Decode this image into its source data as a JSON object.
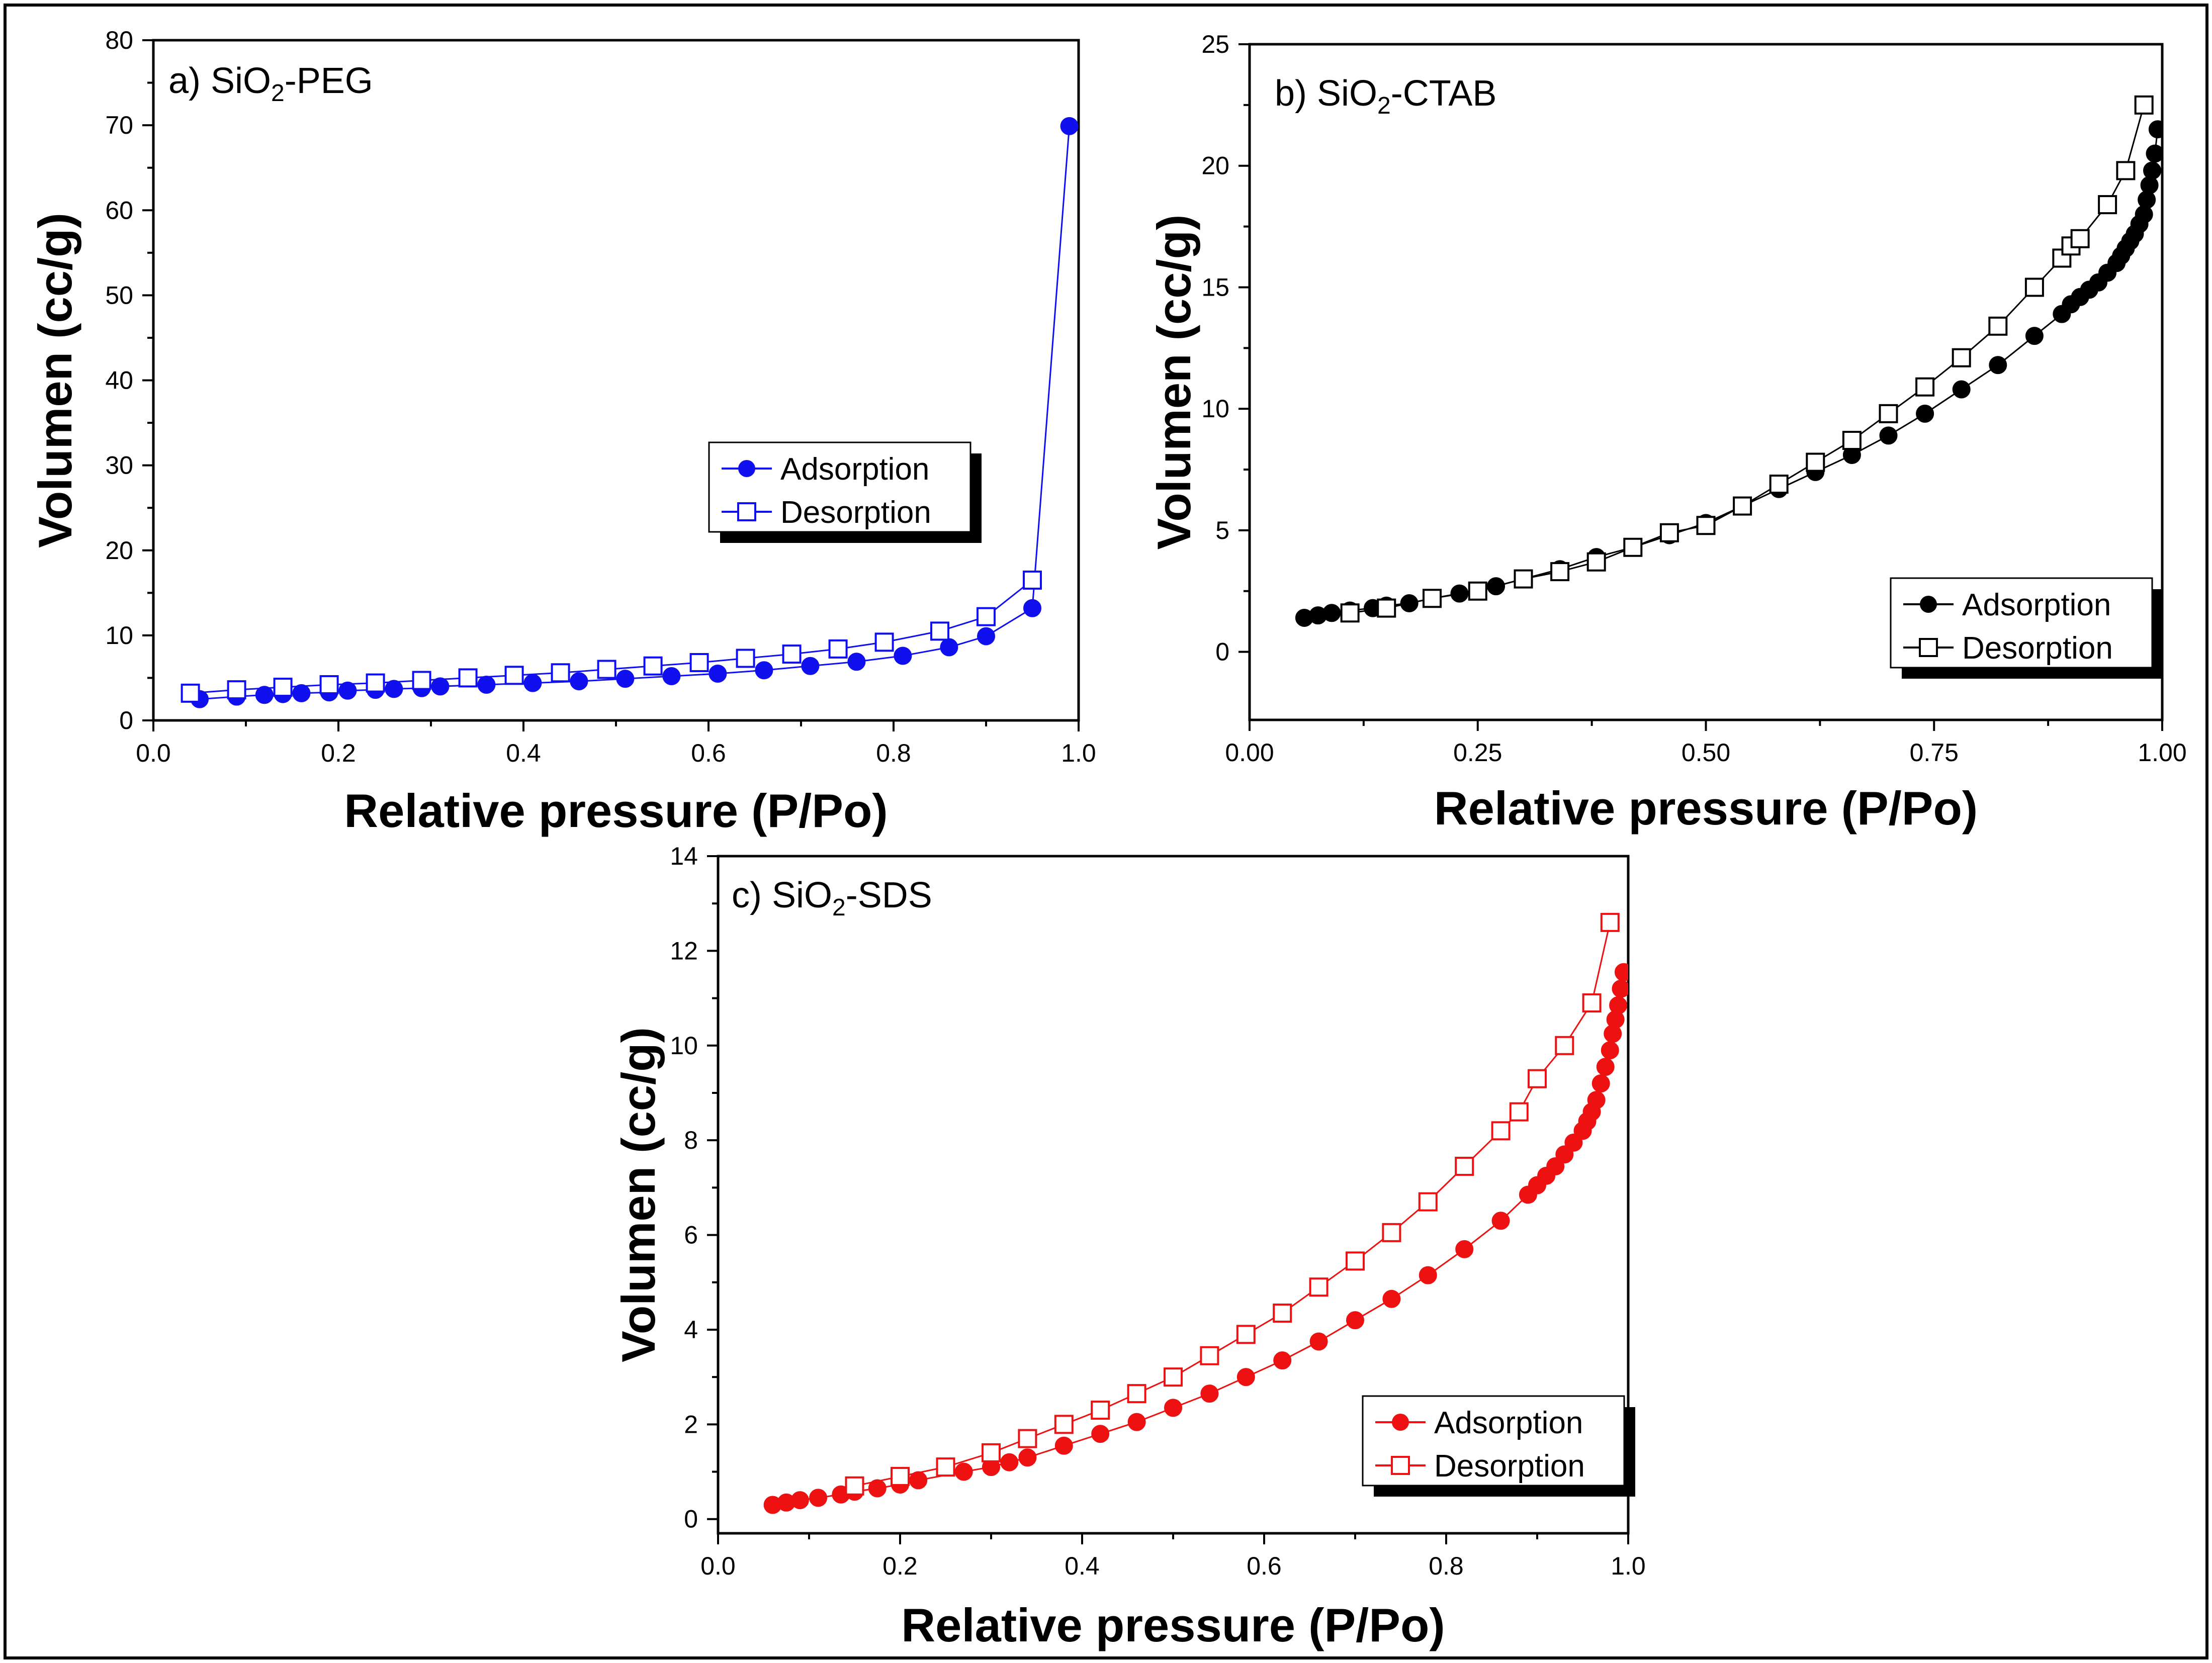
{
  "figure": {
    "frame_color": "#000000"
  },
  "legend_labels": {
    "adsorption": "Adsorption",
    "desorption": "Desorption"
  },
  "chart_data": [
    {
      "id": "a",
      "type": "scatter",
      "title": {
        "prefix": "a) SiO",
        "sub": "2",
        "suffix": "-PEG"
      },
      "xlabel": "Relative pressure (P/Po)",
      "ylabel": "Volumen (cc/g)",
      "xlim": [
        0.0,
        1.0
      ],
      "ylim": [
        0,
        80
      ],
      "xticks": [
        0.0,
        0.2,
        0.4,
        0.6,
        0.8,
        1.0
      ],
      "xtick_labels": [
        "0.0",
        "0.2",
        "0.4",
        "0.6",
        "0.8",
        "1.0"
      ],
      "yticks": [
        0,
        10,
        20,
        30,
        40,
        50,
        60,
        70,
        80
      ],
      "ytick_labels": [
        "0",
        "10",
        "20",
        "30",
        "40",
        "50",
        "60",
        "70",
        "80"
      ],
      "color": "#1010ee",
      "legend_position": "center-right",
      "series": [
        {
          "name": "Adsorption",
          "marker": "filled-circle",
          "x": [
            0.05,
            0.09,
            0.12,
            0.14,
            0.16,
            0.19,
            0.21,
            0.24,
            0.26,
            0.29,
            0.31,
            0.36,
            0.41,
            0.46,
            0.51,
            0.56,
            0.61,
            0.66,
            0.71,
            0.76,
            0.81,
            0.86,
            0.9,
            0.95,
            0.99
          ],
          "y": [
            2.5,
            2.8,
            3.0,
            3.1,
            3.2,
            3.3,
            3.5,
            3.6,
            3.7,
            3.8,
            4.0,
            4.2,
            4.4,
            4.6,
            4.9,
            5.2,
            5.5,
            5.9,
            6.4,
            6.9,
            7.6,
            8.6,
            9.9,
            13.2,
            69.9
          ]
        },
        {
          "name": "Desorption",
          "marker": "open-square",
          "x": [
            0.04,
            0.09,
            0.14,
            0.19,
            0.24,
            0.29,
            0.34,
            0.39,
            0.44,
            0.49,
            0.54,
            0.59,
            0.64,
            0.69,
            0.74,
            0.79,
            0.85,
            0.9,
            0.95
          ],
          "y": [
            3.2,
            3.6,
            3.9,
            4.2,
            4.4,
            4.7,
            5.0,
            5.3,
            5.6,
            6.0,
            6.4,
            6.8,
            7.3,
            7.8,
            8.4,
            9.2,
            10.5,
            12.2,
            16.5
          ]
        }
      ]
    },
    {
      "id": "b",
      "type": "scatter",
      "title": {
        "prefix": "b) SiO",
        "sub": "2",
        "suffix": "-CTAB"
      },
      "xlabel": "Relative pressure (P/Po)",
      "ylabel": "Volumen (cc/g)",
      "xlim": [
        0.0,
        1.0
      ],
      "ylim": [
        -2.8,
        25
      ],
      "xticks": [
        0.0,
        0.25,
        0.5,
        0.75,
        1.0
      ],
      "xtick_labels": [
        "0.00",
        "0.25",
        "0.50",
        "0.75",
        "1.00"
      ],
      "yticks": [
        0,
        5,
        10,
        15,
        20,
        25
      ],
      "ytick_labels": [
        "0",
        "5",
        "10",
        "15",
        "20",
        "25"
      ],
      "color": "#000000",
      "legend_position": "bottom-right",
      "series": [
        {
          "name": "Adsorption",
          "marker": "filled-circle",
          "x": [
            0.06,
            0.075,
            0.09,
            0.11,
            0.135,
            0.15,
            0.175,
            0.2,
            0.23,
            0.27,
            0.3,
            0.34,
            0.38,
            0.42,
            0.46,
            0.5,
            0.54,
            0.58,
            0.62,
            0.66,
            0.7,
            0.74,
            0.78,
            0.82,
            0.86,
            0.89,
            0.9,
            0.91,
            0.92,
            0.93,
            0.94,
            0.95,
            0.955,
            0.96,
            0.965,
            0.97,
            0.975,
            0.98,
            0.983,
            0.986,
            0.989,
            0.992,
            0.995
          ],
          "y": [
            1.4,
            1.5,
            1.6,
            1.7,
            1.8,
            1.9,
            2.0,
            2.2,
            2.4,
            2.7,
            3.0,
            3.4,
            3.9,
            4.3,
            4.8,
            5.3,
            6.0,
            6.7,
            7.4,
            8.1,
            8.9,
            9.8,
            10.8,
            11.8,
            13.0,
            13.9,
            14.3,
            14.6,
            14.9,
            15.2,
            15.6,
            16.0,
            16.3,
            16.6,
            16.9,
            17.2,
            17.6,
            18.0,
            18.6,
            19.2,
            19.8,
            20.5,
            21.5
          ]
        },
        {
          "name": "Desorption",
          "marker": "open-square",
          "x": [
            0.11,
            0.15,
            0.2,
            0.25,
            0.3,
            0.34,
            0.38,
            0.42,
            0.46,
            0.5,
            0.54,
            0.58,
            0.62,
            0.66,
            0.7,
            0.74,
            0.78,
            0.82,
            0.86,
            0.89,
            0.9,
            0.91,
            0.94,
            0.96,
            0.98
          ],
          "y": [
            1.6,
            1.8,
            2.2,
            2.5,
            3.0,
            3.3,
            3.7,
            4.3,
            4.9,
            5.2,
            6.0,
            6.9,
            7.8,
            8.7,
            9.8,
            10.9,
            12.1,
            13.4,
            15.0,
            16.2,
            16.7,
            17.0,
            18.4,
            19.8,
            22.5
          ]
        }
      ]
    },
    {
      "id": "c",
      "type": "scatter",
      "title": {
        "prefix": "c) SiO",
        "sub": "2",
        "suffix": "-SDS"
      },
      "xlabel": "Relative pressure (P/Po)",
      "ylabel": "Volumen (cc/g)",
      "xlim": [
        0.0,
        1.0
      ],
      "ylim": [
        -0.3,
        14
      ],
      "xticks": [
        0.0,
        0.2,
        0.4,
        0.6,
        0.8,
        1.0
      ],
      "xtick_labels": [
        "0.0",
        "0.2",
        "0.4",
        "0.6",
        "0.8",
        "1.0"
      ],
      "yticks": [
        0,
        2,
        4,
        6,
        8,
        10,
        12,
        14
      ],
      "ytick_labels": [
        "0",
        "2",
        "4",
        "6",
        "8",
        "10",
        "12",
        "14"
      ],
      "color": "#ee1111",
      "legend_position": "bottom-right",
      "series": [
        {
          "name": "Adsorption",
          "marker": "filled-circle",
          "x": [
            0.06,
            0.075,
            0.09,
            0.11,
            0.135,
            0.15,
            0.175,
            0.2,
            0.22,
            0.27,
            0.3,
            0.32,
            0.34,
            0.38,
            0.42,
            0.46,
            0.5,
            0.54,
            0.58,
            0.62,
            0.66,
            0.7,
            0.74,
            0.78,
            0.82,
            0.86,
            0.89,
            0.9,
            0.91,
            0.92,
            0.93,
            0.94,
            0.95,
            0.955,
            0.96,
            0.965,
            0.97,
            0.975,
            0.98,
            0.983,
            0.986,
            0.989,
            0.992,
            0.995
          ],
          "y": [
            0.3,
            0.35,
            0.4,
            0.45,
            0.52,
            0.58,
            0.65,
            0.73,
            0.82,
            1.0,
            1.1,
            1.2,
            1.3,
            1.55,
            1.8,
            2.05,
            2.35,
            2.65,
            3.0,
            3.35,
            3.75,
            4.2,
            4.65,
            5.15,
            5.7,
            6.3,
            6.85,
            7.05,
            7.25,
            7.45,
            7.7,
            7.95,
            8.2,
            8.4,
            8.6,
            8.85,
            9.2,
            9.55,
            9.9,
            10.25,
            10.55,
            10.85,
            11.2,
            11.55
          ]
        },
        {
          "name": "Desorption",
          "marker": "open-square",
          "x": [
            0.15,
            0.2,
            0.25,
            0.3,
            0.34,
            0.38,
            0.42,
            0.46,
            0.5,
            0.54,
            0.58,
            0.62,
            0.66,
            0.7,
            0.74,
            0.78,
            0.82,
            0.86,
            0.88,
            0.9,
            0.93,
            0.96,
            0.98
          ],
          "y": [
            0.7,
            0.9,
            1.1,
            1.4,
            1.7,
            2.0,
            2.3,
            2.65,
            3.0,
            3.45,
            3.9,
            4.35,
            4.9,
            5.45,
            6.05,
            6.7,
            7.45,
            8.2,
            8.6,
            9.3,
            10.0,
            10.9,
            12.6
          ]
        }
      ]
    }
  ]
}
